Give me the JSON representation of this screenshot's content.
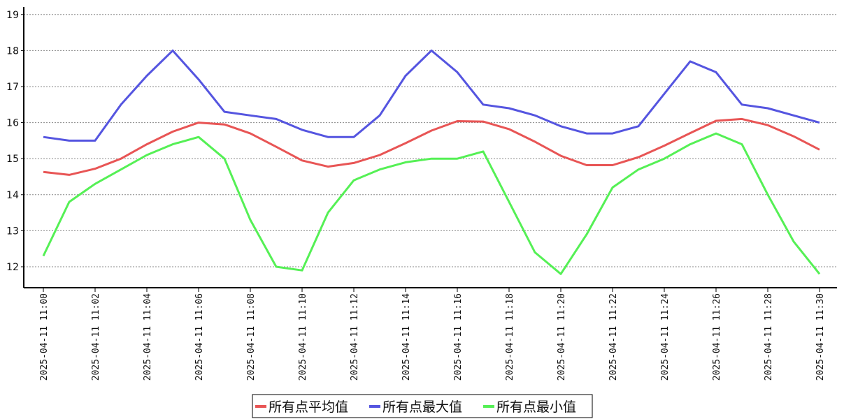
{
  "chart_data": {
    "type": "line",
    "title": "",
    "xlabel": "",
    "ylabel": "",
    "ylim": [
      11.4,
      19.2
    ],
    "yticks": [
      12,
      13,
      14,
      15,
      16,
      17,
      18,
      19
    ],
    "grid": true,
    "legend_position": "bottom-center",
    "x": [
      "2025-04-11 11:00",
      "2025-04-11 11:01",
      "2025-04-11 11:02",
      "2025-04-11 11:03",
      "2025-04-11 11:04",
      "2025-04-11 11:05",
      "2025-04-11 11:06",
      "2025-04-11 11:07",
      "2025-04-11 11:08",
      "2025-04-11 11:09",
      "2025-04-11 11:10",
      "2025-04-11 11:11",
      "2025-04-11 11:12",
      "2025-04-11 11:13",
      "2025-04-11 11:14",
      "2025-04-11 11:15",
      "2025-04-11 11:16",
      "2025-04-11 11:17",
      "2025-04-11 11:18",
      "2025-04-11 11:19",
      "2025-04-11 11:20",
      "2025-04-11 11:21",
      "2025-04-11 11:22",
      "2025-04-11 11:23",
      "2025-04-11 11:24",
      "2025-04-11 11:25",
      "2025-04-11 11:26",
      "2025-04-11 11:27",
      "2025-04-11 11:28",
      "2025-04-11 11:29",
      "2025-04-11 11:30"
    ],
    "xtick_labels": [
      "2025-04-11 11:00",
      "2025-04-11 11:02",
      "2025-04-11 11:04",
      "2025-04-11 11:06",
      "2025-04-11 11:08",
      "2025-04-11 11:10",
      "2025-04-11 11:12",
      "2025-04-11 11:14",
      "2025-04-11 11:16",
      "2025-04-11 11:18",
      "2025-04-11 11:20",
      "2025-04-11 11:22",
      "2025-04-11 11:24",
      "2025-04-11 11:26",
      "2025-04-11 11:28",
      "2025-04-11 11:30"
    ],
    "series": [
      {
        "name": "所有点平均值",
        "color": "#e85555",
        "values": [
          14.63,
          14.55,
          14.72,
          15.0,
          15.4,
          15.75,
          16.0,
          15.95,
          15.7,
          15.33,
          14.95,
          14.78,
          14.88,
          15.1,
          15.43,
          15.78,
          16.04,
          16.03,
          15.82,
          15.47,
          15.08,
          14.82,
          14.82,
          15.04,
          15.36,
          15.71,
          16.05,
          16.1,
          15.93,
          15.62,
          15.25
        ]
      },
      {
        "name": "所有点最大值",
        "color": "#5555e0",
        "values": [
          15.6,
          15.5,
          15.5,
          16.5,
          17.3,
          18.0,
          17.2,
          16.3,
          16.2,
          16.1,
          15.8,
          15.6,
          15.6,
          16.2,
          17.3,
          18.0,
          17.4,
          16.5,
          16.4,
          16.2,
          15.9,
          15.7,
          15.7,
          15.9,
          16.8,
          17.7,
          17.4,
          16.5,
          16.4,
          16.2,
          16.0
        ]
      },
      {
        "name": "所有点最小值",
        "color": "#55f055",
        "values": [
          12.3,
          13.8,
          14.3,
          14.7,
          15.1,
          15.4,
          15.6,
          15.0,
          13.3,
          12.0,
          11.9,
          13.5,
          14.4,
          14.7,
          14.9,
          15.0,
          15.0,
          15.2,
          13.8,
          12.4,
          11.8,
          12.9,
          14.2,
          14.7,
          15.0,
          15.4,
          15.7,
          15.4,
          14.0,
          12.7,
          11.8
        ]
      }
    ]
  }
}
